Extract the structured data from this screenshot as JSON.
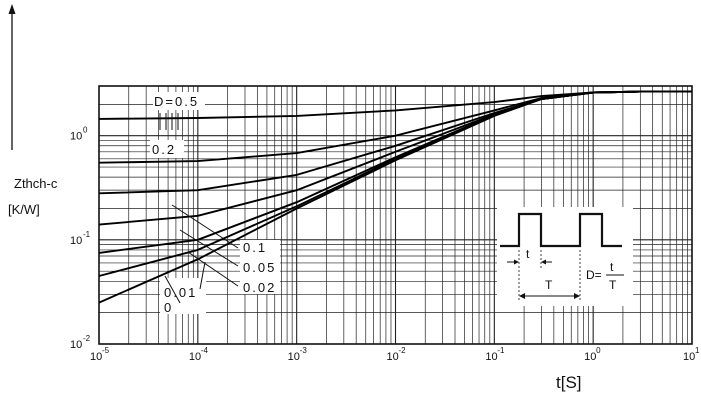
{
  "chart_data": {
    "type": "line",
    "x_scale": "log",
    "y_scale": "log",
    "xlim": [
      1e-05,
      10
    ],
    "ylim": [
      0.01,
      3
    ],
    "grid": true,
    "y_label_line1": "Zthch-c",
    "y_label_line2": "[K/W]",
    "x_label": "t[S]",
    "x_ticks": [
      {
        "mant": "10",
        "exp": "-5",
        "v": 1e-05
      },
      {
        "mant": "10",
        "exp": "-4",
        "v": 0.0001
      },
      {
        "mant": "10",
        "exp": "-3",
        "v": 0.001
      },
      {
        "mant": "10",
        "exp": "-2",
        "v": 0.01
      },
      {
        "mant": "10",
        "exp": "-1",
        "v": 0.1
      },
      {
        "mant": "10",
        "exp": "0",
        "v": 1
      },
      {
        "mant": "10",
        "exp": "1",
        "v": 10
      }
    ],
    "y_ticks": [
      {
        "mant": "10",
        "exp": "-2",
        "v": 0.01
      },
      {
        "mant": "10",
        "exp": "-1",
        "v": 0.1
      },
      {
        "mant": "10",
        "exp": "0",
        "v": 1
      }
    ],
    "series": [
      {
        "name": "D=0.5",
        "x": [
          1e-05,
          0.0001,
          0.001,
          0.01,
          0.1,
          0.3,
          1,
          3,
          10
        ],
        "y": [
          1.45,
          1.48,
          1.55,
          1.75,
          2.1,
          2.4,
          2.6,
          2.65,
          2.65
        ]
      },
      {
        "name": "0.2",
        "x": [
          1e-05,
          0.0001,
          0.001,
          0.01,
          0.1,
          0.3,
          1,
          3,
          10
        ],
        "y": [
          0.55,
          0.57,
          0.68,
          1.0,
          1.75,
          2.3,
          2.6,
          2.65,
          2.65
        ]
      },
      {
        "name": "0.1",
        "x": [
          1e-05,
          0.0001,
          0.001,
          0.01,
          0.1,
          0.3,
          1,
          3,
          10
        ],
        "y": [
          0.28,
          0.3,
          0.42,
          0.8,
          1.65,
          2.25,
          2.6,
          2.65,
          2.65
        ]
      },
      {
        "name": "0.05",
        "x": [
          1e-05,
          0.0001,
          0.001,
          0.01,
          0.1,
          0.3,
          1,
          3,
          10
        ],
        "y": [
          0.14,
          0.17,
          0.3,
          0.7,
          1.6,
          2.25,
          2.6,
          2.65,
          2.65
        ]
      },
      {
        "name": "0.02",
        "x": [
          1e-05,
          0.0001,
          0.001,
          0.01,
          0.1,
          0.3,
          1,
          3,
          10
        ],
        "y": [
          0.075,
          0.1,
          0.23,
          0.62,
          1.58,
          2.25,
          2.6,
          2.65,
          2.65
        ]
      },
      {
        "name": "0.01",
        "x": [
          1e-05,
          0.0001,
          0.001,
          0.01,
          0.1,
          0.3,
          1,
          3,
          10
        ],
        "y": [
          0.045,
          0.08,
          0.21,
          0.6,
          1.56,
          2.25,
          2.6,
          2.65,
          2.65
        ]
      },
      {
        "name": "0",
        "x": [
          1e-05,
          0.0001,
          0.001,
          0.01,
          0.1,
          0.3,
          1,
          3,
          10
        ],
        "y": [
          0.025,
          0.065,
          0.2,
          0.58,
          1.55,
          2.25,
          2.6,
          2.65,
          2.65
        ]
      }
    ],
    "annotations": {
      "d05": "D=0.5",
      "d02": "0.2",
      "d01": "0.1",
      "d005": "0.05",
      "d002": "0.02",
      "d001": "0.01",
      "d0": "0"
    },
    "inset": {
      "t": "t",
      "T": "T",
      "d_prefix": "D=",
      "frac_num": "t",
      "frac_den": "T"
    }
  }
}
